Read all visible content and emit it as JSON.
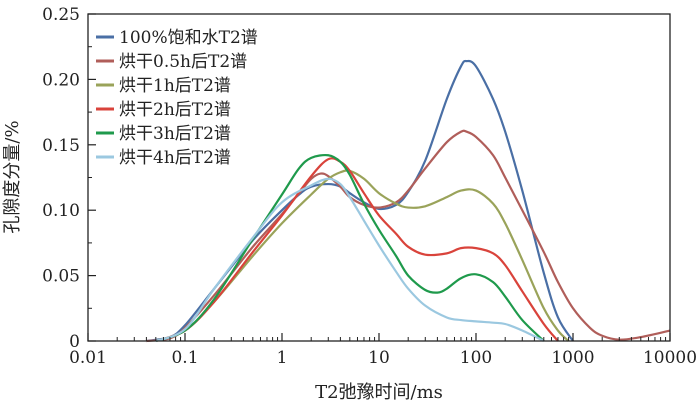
{
  "chart_data": {
    "type": "line",
    "xlabel": "T2弛豫时间/ms",
    "ylabel": "孔隙度分量/%",
    "xscale": "log",
    "xlim": [
      0.01,
      10000
    ],
    "ylim": [
      0,
      0.25
    ],
    "xticks": [
      "0.01",
      "0.1",
      "1",
      "10",
      "100",
      "1000",
      "10000"
    ],
    "yticks": [
      "0",
      "0.05",
      "0.10",
      "0.15",
      "0.20",
      "0.25"
    ],
    "grid": false,
    "legend_position": "top-left",
    "series": [
      {
        "name": "100%饱和水T2谱",
        "color": "#4a6fa5",
        "points": [
          [
            0.04,
            0
          ],
          [
            0.07,
            0.003
          ],
          [
            0.1,
            0.012
          ],
          [
            0.2,
            0.04
          ],
          [
            0.5,
            0.077
          ],
          [
            1,
            0.1
          ],
          [
            1.5,
            0.112
          ],
          [
            2,
            0.118
          ],
          [
            3,
            0.12
          ],
          [
            4,
            0.118
          ],
          [
            5,
            0.113
          ],
          [
            7,
            0.106
          ],
          [
            10,
            0.101
          ],
          [
            15,
            0.104
          ],
          [
            20,
            0.114
          ],
          [
            30,
            0.138
          ],
          [
            50,
            0.185
          ],
          [
            70,
            0.21
          ],
          [
            80,
            0.214
          ],
          [
            100,
            0.21
          ],
          [
            150,
            0.185
          ],
          [
            200,
            0.16
          ],
          [
            300,
            0.115
          ],
          [
            500,
            0.052
          ],
          [
            700,
            0.018
          ],
          [
            1000,
            0
          ]
        ]
      },
      {
        "name": "烘干0.5h后T2谱",
        "color": "#b05e5a",
        "points": [
          [
            0.04,
            0
          ],
          [
            0.07,
            0.002
          ],
          [
            0.1,
            0.01
          ],
          [
            0.2,
            0.035
          ],
          [
            0.5,
            0.072
          ],
          [
            1,
            0.097
          ],
          [
            1.5,
            0.113
          ],
          [
            2,
            0.124
          ],
          [
            2.5,
            0.128
          ],
          [
            3,
            0.126
          ],
          [
            4,
            0.118
          ],
          [
            5,
            0.11
          ],
          [
            7,
            0.104
          ],
          [
            10,
            0.102
          ],
          [
            15,
            0.106
          ],
          [
            20,
            0.115
          ],
          [
            30,
            0.132
          ],
          [
            50,
            0.152
          ],
          [
            70,
            0.16
          ],
          [
            80,
            0.16
          ],
          [
            100,
            0.156
          ],
          [
            150,
            0.142
          ],
          [
            200,
            0.125
          ],
          [
            300,
            0.1
          ],
          [
            500,
            0.068
          ],
          [
            700,
            0.045
          ],
          [
            1000,
            0.025
          ],
          [
            1500,
            0.01
          ],
          [
            2000,
            0.004
          ],
          [
            3000,
            0.001
          ],
          [
            5000,
            0.003
          ],
          [
            10000,
            0.008
          ]
        ]
      },
      {
        "name": "烘干1h后T2谱",
        "color": "#9aa35a",
        "points": [
          [
            0.05,
            0
          ],
          [
            0.1,
            0.008
          ],
          [
            0.2,
            0.03
          ],
          [
            0.5,
            0.065
          ],
          [
            1,
            0.09
          ],
          [
            2,
            0.112
          ],
          [
            3,
            0.124
          ],
          [
            4,
            0.129
          ],
          [
            5,
            0.13
          ],
          [
            7,
            0.124
          ],
          [
            10,
            0.113
          ],
          [
            15,
            0.105
          ],
          [
            20,
            0.102
          ],
          [
            30,
            0.103
          ],
          [
            50,
            0.11
          ],
          [
            70,
            0.115
          ],
          [
            100,
            0.115
          ],
          [
            150,
            0.105
          ],
          [
            200,
            0.09
          ],
          [
            300,
            0.062
          ],
          [
            500,
            0.025
          ],
          [
            700,
            0.008
          ],
          [
            900,
            0
          ]
        ]
      },
      {
        "name": "烘干2h后T2谱",
        "color": "#d9433b",
        "points": [
          [
            0.05,
            0
          ],
          [
            0.1,
            0.008
          ],
          [
            0.2,
            0.03
          ],
          [
            0.5,
            0.068
          ],
          [
            1,
            0.096
          ],
          [
            2,
            0.126
          ],
          [
            3,
            0.139
          ],
          [
            4,
            0.137
          ],
          [
            5,
            0.13
          ],
          [
            7,
            0.113
          ],
          [
            10,
            0.096
          ],
          [
            15,
            0.082
          ],
          [
            20,
            0.072
          ],
          [
            30,
            0.066
          ],
          [
            50,
            0.067
          ],
          [
            70,
            0.071
          ],
          [
            100,
            0.071
          ],
          [
            150,
            0.067
          ],
          [
            200,
            0.058
          ],
          [
            300,
            0.038
          ],
          [
            500,
            0.013
          ],
          [
            700,
            0
          ]
        ]
      },
      {
        "name": "烘干3h后T2谱",
        "color": "#1f9a4c",
        "points": [
          [
            0.05,
            0
          ],
          [
            0.1,
            0.008
          ],
          [
            0.2,
            0.032
          ],
          [
            0.5,
            0.078
          ],
          [
            1,
            0.112
          ],
          [
            1.5,
            0.132
          ],
          [
            2,
            0.14
          ],
          [
            3,
            0.142
          ],
          [
            4,
            0.137
          ],
          [
            5,
            0.127
          ],
          [
            7,
            0.105
          ],
          [
            10,
            0.085
          ],
          [
            15,
            0.065
          ],
          [
            20,
            0.05
          ],
          [
            30,
            0.039
          ],
          [
            40,
            0.037
          ],
          [
            50,
            0.04
          ],
          [
            70,
            0.048
          ],
          [
            100,
            0.051
          ],
          [
            150,
            0.045
          ],
          [
            200,
            0.034
          ],
          [
            300,
            0.016
          ],
          [
            500,
            0
          ]
        ]
      },
      {
        "name": "烘干4h后T2谱",
        "color": "#9bc8e0",
        "points": [
          [
            0.05,
            0
          ],
          [
            0.1,
            0.009
          ],
          [
            0.2,
            0.04
          ],
          [
            0.5,
            0.079
          ],
          [
            1,
            0.106
          ],
          [
            2,
            0.119
          ],
          [
            3,
            0.124
          ],
          [
            4,
            0.12
          ],
          [
            5,
            0.11
          ],
          [
            7,
            0.092
          ],
          [
            10,
            0.073
          ],
          [
            15,
            0.053
          ],
          [
            20,
            0.04
          ],
          [
            30,
            0.027
          ],
          [
            50,
            0.018
          ],
          [
            70,
            0.016
          ],
          [
            100,
            0.015
          ],
          [
            150,
            0.014
          ],
          [
            200,
            0.013
          ],
          [
            300,
            0.008
          ],
          [
            500,
            0
          ]
        ]
      }
    ]
  }
}
